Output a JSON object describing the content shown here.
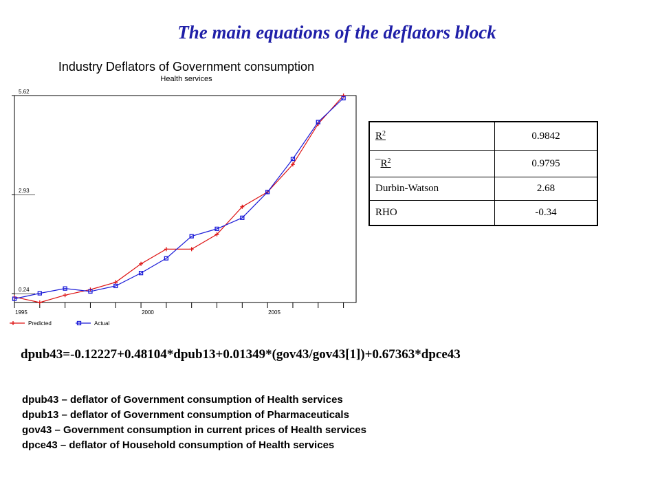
{
  "slide": {
    "title": "The main equations of the deflators block"
  },
  "chart_data": {
    "type": "line",
    "title": "Industry Deflators of Government consumption",
    "subtitle": "Health services",
    "xlabel": "",
    "ylabel": "",
    "x": [
      1995,
      1996,
      1997,
      1998,
      1999,
      2000,
      2001,
      2002,
      2003,
      2004,
      2005,
      2006,
      2007,
      2008
    ],
    "xlim": [
      1995,
      2008.5
    ],
    "ylim": [
      0,
      5.62
    ],
    "x_ticks": [
      "1995",
      "2000",
      "2005"
    ],
    "y_ticks": [
      "0.24",
      "2.93",
      "5.62"
    ],
    "grid": false,
    "legend_position": "bottom-left",
    "series": [
      {
        "name": "Predicted",
        "color": "#dd1111",
        "marker": "plus",
        "values": [
          0.15,
          0.0,
          0.2,
          0.35,
          0.55,
          1.05,
          1.45,
          1.45,
          1.85,
          2.6,
          3.0,
          3.75,
          4.85,
          5.62
        ]
      },
      {
        "name": "Actual",
        "color": "#1a1ad8",
        "marker": "square",
        "values": [
          0.1,
          0.25,
          0.38,
          0.3,
          0.45,
          0.8,
          1.2,
          1.8,
          2.0,
          2.3,
          3.0,
          3.9,
          4.9,
          5.55
        ]
      }
    ]
  },
  "stats": {
    "rows": [
      {
        "label": "R",
        "sup": "2",
        "value": "0.9842"
      },
      {
        "label": "R",
        "sup": "2",
        "prefix": "¯",
        "value": "0.9795"
      },
      {
        "label": "Durbin-Watson",
        "value": "2.68"
      },
      {
        "label": "RHO",
        "value": "-0.34"
      }
    ]
  },
  "equation": "dpub43=-0.12227+0.48104*dpub13+0.01349*(gov43/gov43[1])+0.67363*dpce43",
  "definitions": [
    "dpub43 – deflator of Government consumption of Health services",
    "dpub13 – deflator of Government consumption of Pharmaceuticals",
    "gov43 –  Government consumption in current prices of Health services",
    "dpce43 –  deflator of Household consumption of Health services"
  ]
}
